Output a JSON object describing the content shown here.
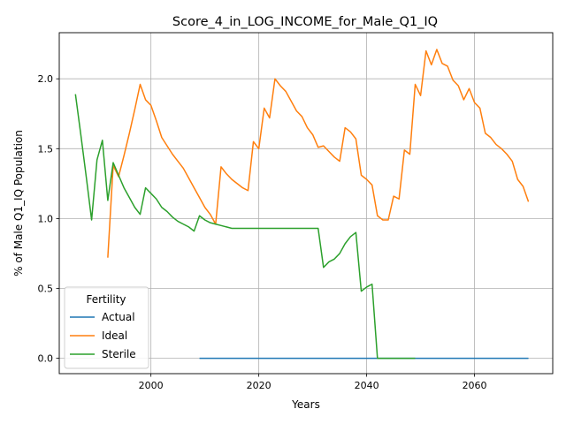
{
  "chart_data": {
    "type": "line",
    "title": "Score_4_in_LOG_INCOME_for_Male_Q1_IQ",
    "xlabel": "Years",
    "ylabel": "% of Male Q1_IQ Population",
    "xlim": [
      1983,
      2074.5
    ],
    "ylim": [
      -0.11,
      2.33
    ],
    "xticks": [
      2000,
      2020,
      2040,
      2060
    ],
    "yticks": [
      0.0,
      0.5,
      1.0,
      1.5,
      2.0
    ],
    "ytick_labels": [
      "0.0",
      "0.5",
      "1.0",
      "1.5",
      "2.0"
    ],
    "grid": true,
    "legend": {
      "title": "Fertility",
      "placement": "lower-left"
    },
    "series": [
      {
        "name": "Actual",
        "color": "#1f77b4",
        "x": [
          2009,
          2070
        ],
        "y": [
          0.0,
          0.0
        ]
      },
      {
        "name": "Ideal",
        "color": "#ff7f0e",
        "x": [
          1992,
          1993,
          1994,
          1995,
          1996,
          1997,
          1998,
          1999,
          2000,
          2001,
          2002,
          2003,
          2004,
          2005,
          2006,
          2007,
          2008,
          2009,
          2010,
          2011,
          2012,
          2013,
          2014,
          2015,
          2016,
          2017,
          2018,
          2019,
          2020,
          2021,
          2022,
          2023,
          2024,
          2025,
          2026,
          2027,
          2028,
          2029,
          2030,
          2031,
          2032,
          2033,
          2034,
          2035,
          2036,
          2037,
          2038,
          2039,
          2040,
          2041,
          2042,
          2043,
          2044,
          2045,
          2046,
          2047,
          2048,
          2049,
          2050,
          2051,
          2052,
          2053,
          2054,
          2055,
          2056,
          2057,
          2058,
          2059,
          2060,
          2061,
          2062,
          2063,
          2064,
          2065,
          2066,
          2067,
          2068,
          2069,
          2070
        ],
        "y": [
          0.72,
          1.38,
          1.3,
          1.45,
          1.61,
          1.78,
          1.96,
          1.85,
          1.81,
          1.7,
          1.58,
          1.52,
          1.46,
          1.41,
          1.36,
          1.29,
          1.22,
          1.15,
          1.08,
          1.03,
          0.96,
          1.37,
          1.32,
          1.28,
          1.25,
          1.22,
          1.2,
          1.55,
          1.5,
          1.79,
          1.72,
          2.0,
          1.95,
          1.91,
          1.84,
          1.77,
          1.73,
          1.65,
          1.6,
          1.51,
          1.52,
          1.48,
          1.44,
          1.41,
          1.65,
          1.62,
          1.57,
          1.31,
          1.28,
          1.24,
          1.02,
          0.99,
          0.99,
          1.16,
          1.14,
          1.49,
          1.46,
          1.96,
          1.88,
          2.2,
          2.1,
          2.21,
          2.11,
          2.09,
          1.99,
          1.95,
          1.85,
          1.93,
          1.83,
          1.79,
          1.61,
          1.58,
          1.53,
          1.5,
          1.46,
          1.41,
          1.28,
          1.23,
          1.12
        ]
      },
      {
        "name": "Sterile",
        "color": "#2ca02c",
        "x": [
          1986,
          1987,
          1988,
          1989,
          1990,
          1991,
          1992,
          1993,
          1994,
          1995,
          1996,
          1997,
          1998,
          1999,
          2000,
          2001,
          2002,
          2003,
          2004,
          2005,
          2006,
          2007,
          2008,
          2009,
          2010,
          2011,
          2012,
          2013,
          2014,
          2015,
          2016,
          2020,
          2025,
          2031,
          2032,
          2033,
          2034,
          2035,
          2036,
          2037,
          2038,
          2039,
          2040,
          2041,
          2042,
          2049
        ],
        "y": [
          1.89,
          1.6,
          1.3,
          0.99,
          1.42,
          1.56,
          1.13,
          1.4,
          1.31,
          1.22,
          1.15,
          1.08,
          1.03,
          1.22,
          1.18,
          1.14,
          1.08,
          1.05,
          1.01,
          0.98,
          0.96,
          0.94,
          0.91,
          1.02,
          0.99,
          0.97,
          0.96,
          0.95,
          0.94,
          0.93,
          0.93,
          0.93,
          0.93,
          0.93,
          0.65,
          0.69,
          0.71,
          0.75,
          0.82,
          0.87,
          0.9,
          0.48,
          0.51,
          0.53,
          0.0,
          0.0
        ]
      }
    ]
  }
}
